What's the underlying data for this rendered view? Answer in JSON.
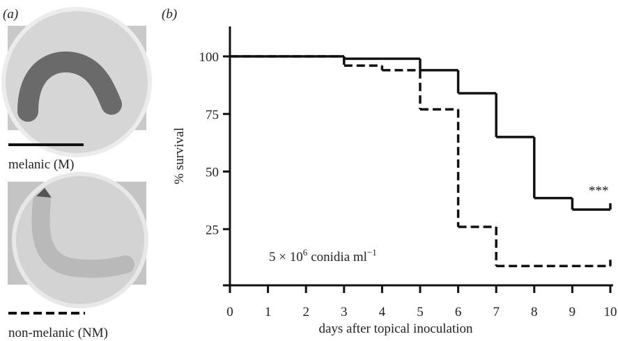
{
  "chart_data": {
    "type": "step",
    "panel_a_label": "(a)",
    "panel_b_label": "(b)",
    "x_label": "days after topical inoculation",
    "y_label": "% survival",
    "annotation_significance": "***",
    "annotation_dose": {
      "base": "5 × 10",
      "exp": "6",
      "unit": "conidia ml",
      "unit_exp": "−1"
    },
    "x": [
      0,
      3,
      4,
      5,
      6,
      7,
      8,
      9,
      10
    ],
    "xlim": [
      0,
      10
    ],
    "xticks": [
      0,
      1,
      2,
      3,
      4,
      5,
      6,
      7,
      8,
      9,
      10
    ],
    "ylim": [
      0,
      113
    ],
    "yticks": [
      25,
      50,
      75,
      100
    ],
    "series": [
      {
        "name": "melanic (M)",
        "color": "#111111",
        "dash": false,
        "values": [
          100,
          99,
          99,
          94,
          84,
          65,
          38.5,
          33.5,
          33.5
        ]
      },
      {
        "name": "non-melanic (NM)",
        "color": "#111111",
        "dash": true,
        "values": [
          100,
          96,
          94,
          77,
          26,
          9,
          9,
          9,
          9
        ]
      }
    ]
  }
}
